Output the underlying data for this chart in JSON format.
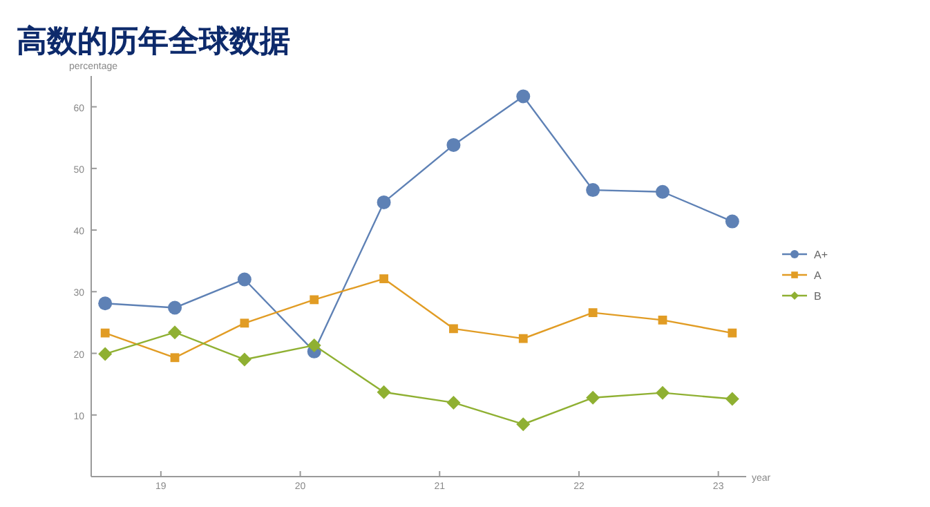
{
  "chart_data": {
    "type": "line",
    "title": "高数的历年全球数据",
    "xlabel": "year",
    "ylabel": "percentage",
    "x": [
      18.6,
      19.1,
      19.6,
      20.1,
      20.6,
      21.1,
      21.6,
      22.1,
      22.6,
      23.1
    ],
    "series": [
      {
        "name": "A+",
        "color": "#5e81b5",
        "marker": "circle",
        "values": [
          28.1,
          27.4,
          32.0,
          20.3,
          44.5,
          53.8,
          61.7,
          46.5,
          46.2,
          41.4
        ]
      },
      {
        "name": "A",
        "color": "#e19c24",
        "marker": "square",
        "values": [
          23.3,
          19.3,
          24.9,
          28.7,
          32.1,
          24.0,
          22.4,
          26.6,
          25.4,
          23.3
        ]
      },
      {
        "name": "B",
        "color": "#8fb032",
        "marker": "diamond",
        "values": [
          19.9,
          23.4,
          19.0,
          21.3,
          13.7,
          12.0,
          8.5,
          12.8,
          13.6,
          12.6
        ]
      }
    ],
    "xlim": [
      18.5,
      23.2
    ],
    "xticks": [
      19,
      20,
      21,
      22,
      23
    ],
    "ylim": [
      0,
      65
    ],
    "yticks": [
      10,
      20,
      30,
      40,
      50,
      60
    ],
    "legend": "right",
    "line_style": "solid"
  }
}
